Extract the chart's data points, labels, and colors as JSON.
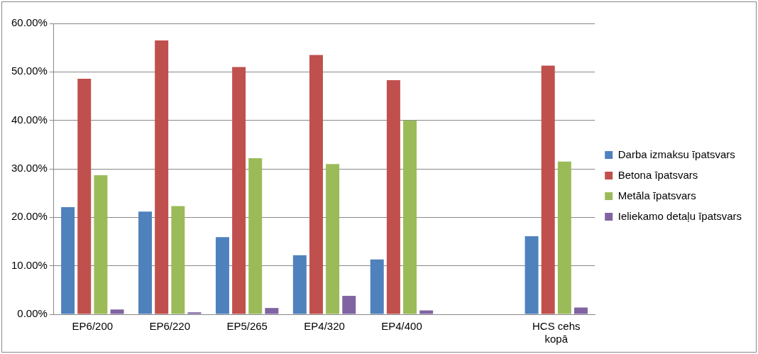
{
  "chart_data": {
    "type": "bar",
    "categories": [
      "EP6/200",
      "EP6/220",
      "EP5/265",
      "EP4/320",
      "EP4/400",
      null,
      "HCS cehs kopā"
    ],
    "series": [
      {
        "name": "Darba izmaksu īpatsvars",
        "color": "#4f81bd",
        "values": [
          22.1,
          21.2,
          15.9,
          12.2,
          11.3,
          null,
          16.1
        ]
      },
      {
        "name": "Betona īpatsvars",
        "color": "#c0504d",
        "values": [
          48.6,
          56.5,
          51.0,
          53.5,
          48.3,
          null,
          51.3
        ]
      },
      {
        "name": "Metāla īpatsvars",
        "color": "#9bbb59",
        "values": [
          28.7,
          22.3,
          32.2,
          31.0,
          40.0,
          null,
          31.5
        ]
      },
      {
        "name": "Ieliekamo detaļu īpatsvars",
        "color": "#8064a2",
        "values": [
          1.0,
          0.4,
          1.3,
          3.8,
          0.8,
          null,
          1.4
        ]
      }
    ],
    "ylim": [
      0,
      60
    ],
    "yticks": [
      {
        "value": 0,
        "label": "0.00%"
      },
      {
        "value": 10,
        "label": "10.00%"
      },
      {
        "value": 20,
        "label": "20.00%"
      },
      {
        "value": 30,
        "label": "30.00%"
      },
      {
        "value": 40,
        "label": "40.00%"
      },
      {
        "value": 50,
        "label": "50.00%"
      },
      {
        "value": 60,
        "label": "60.00%"
      }
    ],
    "grid": "y",
    "legend": "right"
  }
}
